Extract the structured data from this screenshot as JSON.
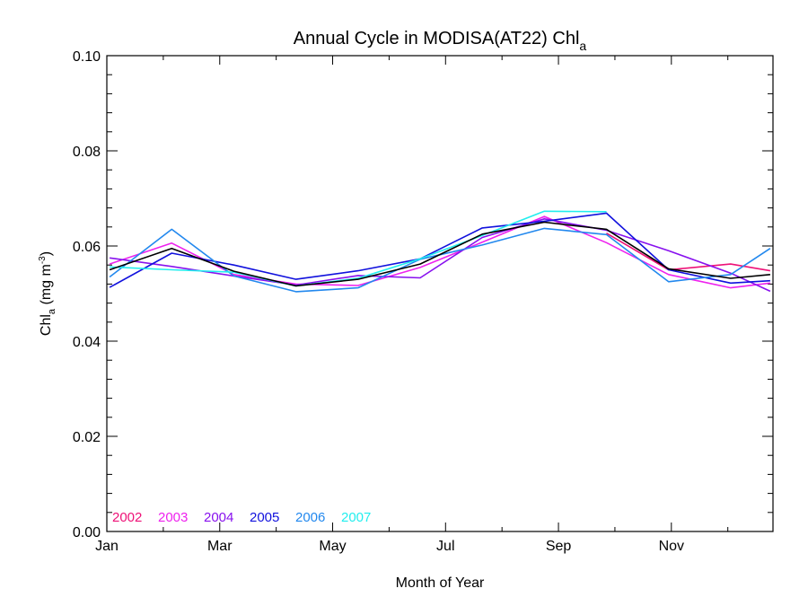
{
  "chart_data": {
    "type": "line",
    "title": {
      "main": "Annual Cycle in MODISA(AT22) Chl",
      "sub": "a"
    },
    "xlabel": "Month of Year",
    "ylabel": {
      "main": "Chl",
      "sub": "a",
      "unit_pre": " (mg m",
      "unit_sup": "-3",
      "unit_post": ")"
    },
    "xlim": [
      1,
      12.8
    ],
    "ylim": [
      0,
      0.1
    ],
    "x_ticks": [
      {
        "value": 1,
        "label": "Jan"
      },
      {
        "value": 3,
        "label": "Mar"
      },
      {
        "value": 5,
        "label": "May"
      },
      {
        "value": 7,
        "label": "Jul"
      },
      {
        "value": 9,
        "label": "Sep"
      },
      {
        "value": 11,
        "label": "Nov"
      }
    ],
    "y_ticks": [
      {
        "value": 0,
        "label": "0.00"
      },
      {
        "value": 0.02,
        "label": "0.02"
      },
      {
        "value": 0.04,
        "label": "0.04"
      },
      {
        "value": 0.06,
        "label": "0.06"
      },
      {
        "value": 0.08,
        "label": "0.08"
      },
      {
        "value": 0.1,
        "label": "0.10"
      }
    ],
    "x": [
      1.05,
      2.15,
      3.25,
      4.35,
      5.45,
      6.55,
      7.65,
      8.75,
      9.85,
      10.95,
      12.05,
      12.75
    ],
    "series": [
      {
        "name": "2002",
        "color": "#ee1177",
        "values": [
          null,
          null,
          null,
          null,
          null,
          null,
          0.0583,
          null,
          0.0627,
          0.055,
          0.0562,
          0.0548
        ]
      },
      {
        "name": "2003",
        "color": "#ee22ee",
        "values": [
          0.0562,
          0.0606,
          0.054,
          0.052,
          0.0517,
          0.0555,
          0.0608,
          0.0662,
          0.0607,
          0.054,
          0.0512,
          0.0522
        ]
      },
      {
        "name": "2004",
        "color": "#8811ee",
        "values": [
          0.0575,
          0.0557,
          0.0537,
          0.0518,
          0.0538,
          0.0533,
          0.0618,
          0.0657,
          0.0633,
          0.059,
          0.0543,
          0.0505
        ]
      },
      {
        "name": "2005",
        "color": "#1111dd",
        "values": [
          0.0513,
          0.0585,
          0.056,
          0.053,
          0.0548,
          0.0573,
          0.0638,
          0.0652,
          0.0669,
          0.055,
          0.0522,
          0.0527
        ]
      },
      {
        "name": "2006",
        "color": "#2288ee",
        "values": [
          0.0535,
          0.0635,
          0.0537,
          0.0504,
          0.0512,
          0.0572,
          0.0602,
          0.0637,
          0.0624,
          0.0525,
          0.054,
          0.0595
        ]
      },
      {
        "name": "2007",
        "color": "#22eeee",
        "values": [
          0.0556,
          0.055,
          0.0545,
          0.0516,
          0.0532,
          0.0573,
          0.0622,
          0.0673,
          0.0672,
          null,
          null,
          null
        ]
      },
      {
        "name": "",
        "color": "#000000",
        "values": [
          0.055,
          0.0595,
          0.0547,
          0.0516,
          0.053,
          0.0562,
          0.0625,
          0.065,
          0.0635,
          0.0552,
          0.0532,
          0.054
        ]
      }
    ],
    "legend_position": "bottom-left, inside plot",
    "grid": false
  }
}
